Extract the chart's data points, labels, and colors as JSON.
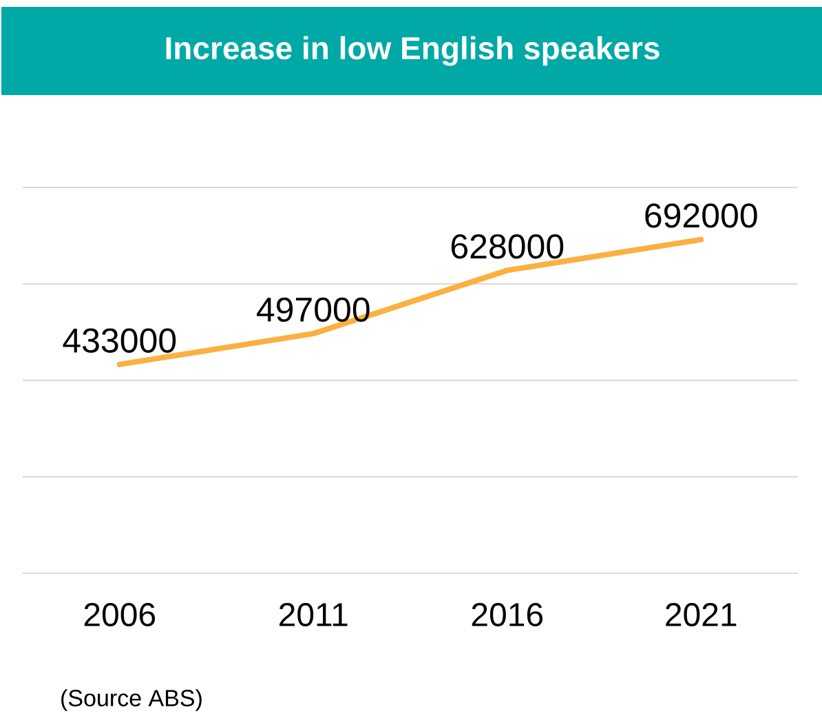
{
  "chart_data": {
    "type": "line",
    "title": "Increase in low English speakers",
    "categories": [
      "2006",
      "2011",
      "2016",
      "2021"
    ],
    "values": [
      433000,
      497000,
      628000,
      692000
    ],
    "color": "#fbb040",
    "ylim": [
      0,
      800000
    ],
    "yticks": [
      {
        "value": 0,
        "label": null
      },
      {
        "value": 200000,
        "label": null
      },
      {
        "value": 400000,
        "label": null
      },
      {
        "value": 600000,
        "label": null
      },
      {
        "value": 800000,
        "label": null
      }
    ],
    "tick_labels": "x",
    "grid": "y",
    "data_labels": true,
    "marker": "none",
    "line_style": "solid",
    "annotations": [
      "(Source ABS)"
    ]
  }
}
